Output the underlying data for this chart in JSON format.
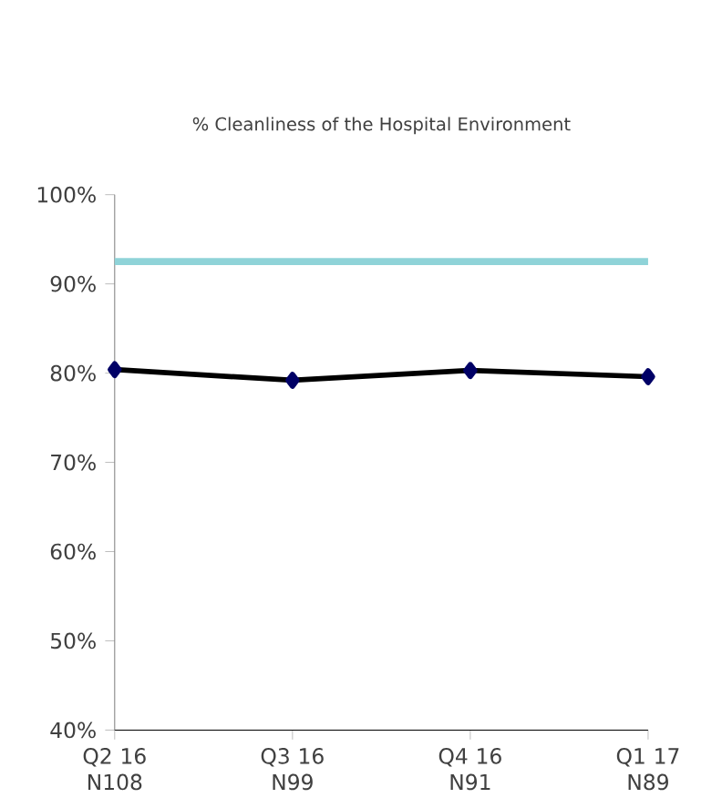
{
  "chart_data": {
    "type": "line",
    "title": "% Cleanliness of the Hospital Environment",
    "categories": [
      "Q2 16 N108",
      "Q3 16 N99",
      "Q4 16 N91",
      "Q1 17 N89"
    ],
    "series": [
      {
        "color": "#000000",
        "values": [
          80.4,
          79.2,
          80.3,
          79.6
        ]
      }
    ],
    "marker": "diamond",
    "ylim": [
      40,
      100
    ],
    "yticks": [
      {
        "value": 40,
        "label": "40%"
      },
      {
        "value": 50,
        "label": "50%"
      },
      {
        "value": 60,
        "label": "60%"
      },
      {
        "value": 70,
        "label": "70%"
      },
      {
        "value": 80,
        "label": "80%"
      },
      {
        "value": 90,
        "label": "90%"
      },
      {
        "value": 100,
        "label": "100%"
      }
    ],
    "ref_lines": [
      {
        "axis": "y",
        "value": 92.5,
        "color": "#8fd3d8"
      }
    ]
  }
}
